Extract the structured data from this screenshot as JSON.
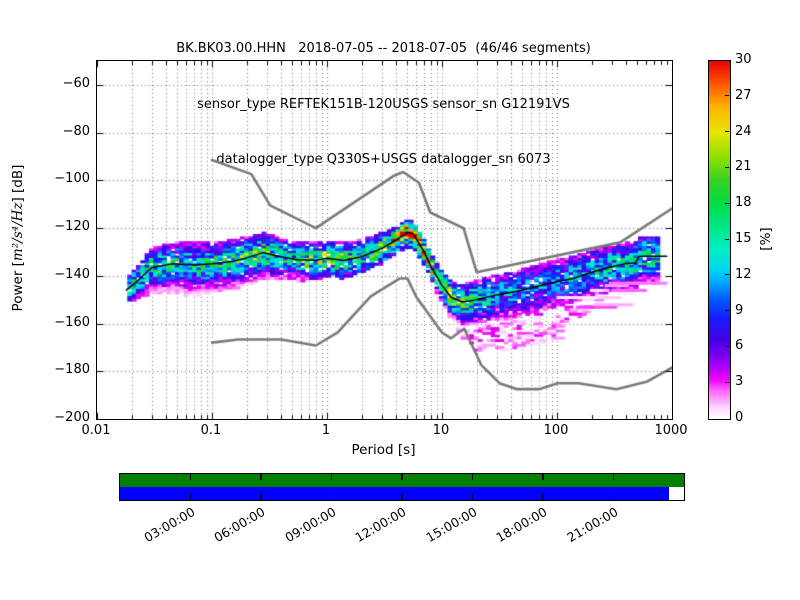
{
  "chart_data": {
    "type": "heatmap",
    "title_lines": [
      "BK.BK03.00.HHN   2018-07-05 -- 2018-07-05  (46/46 segments)",
      "sensor_type REFTEK151B-120USGS sensor_sn G12191VS",
      "datalogger_type Q330S+USGS datalogger_sn 6073"
    ],
    "xlabel": "Period [s]",
    "ylabel_prefix": "Power [",
    "ylabel_math": "m²/s⁴/Hz",
    "ylabel_suffix": "] [dB]",
    "x_scale": "log",
    "xlim": [
      0.01,
      1000
    ],
    "x_tick_labels": [
      "0.01",
      "0.1",
      "1",
      "10",
      "100",
      "1000"
    ],
    "ylim": [
      -200,
      -50
    ],
    "y_ticks": [
      -60,
      -80,
      -100,
      -120,
      -140,
      -160,
      -180,
      -200
    ],
    "grid": "both-dotted",
    "colorbar": {
      "label": "[%]",
      "min": 0,
      "max": 30,
      "ticks": [
        0,
        3,
        6,
        9,
        12,
        15,
        18,
        21,
        24,
        27,
        30
      ],
      "colormap": "pqlx",
      "stops": [
        [
          0.0,
          "#ffffff"
        ],
        [
          0.03,
          "#ffd9ff"
        ],
        [
          0.08,
          "#ff64ff"
        ],
        [
          0.11,
          "#f000ff"
        ],
        [
          0.16,
          "#9100f5"
        ],
        [
          0.22,
          "#4600e8"
        ],
        [
          0.28,
          "#1919ff"
        ],
        [
          0.33,
          "#0055ff"
        ],
        [
          0.38,
          "#00a4ff"
        ],
        [
          0.42,
          "#00d8f0"
        ],
        [
          0.47,
          "#00eec8"
        ],
        [
          0.53,
          "#00e88c"
        ],
        [
          0.6,
          "#00dc46"
        ],
        [
          0.67,
          "#3cd223"
        ],
        [
          0.73,
          "#8ce000"
        ],
        [
          0.8,
          "#e6e600"
        ],
        [
          0.87,
          "#ffb400"
        ],
        [
          0.93,
          "#ff5f00"
        ],
        [
          1.0,
          "#e60000"
        ]
      ]
    },
    "noise_models": {
      "color": "#7a7a7a",
      "nhnm": [
        [
          0.1,
          -91.5
        ],
        [
          0.22,
          -97.4
        ],
        [
          0.32,
          -110.5
        ],
        [
          0.8,
          -120.0
        ],
        [
          3.8,
          -98.1
        ],
        [
          4.6,
          -96.5
        ],
        [
          6.3,
          -101.0
        ],
        [
          7.9,
          -113.5
        ],
        [
          15.4,
          -120.0
        ],
        [
          20.0,
          -138.5
        ],
        [
          354.8,
          -126.0
        ],
        [
          1000,
          -111.8
        ]
      ],
      "nlnm": [
        [
          0.1,
          -168.0
        ],
        [
          0.17,
          -166.7
        ],
        [
          0.4,
          -166.7
        ],
        [
          0.8,
          -169.2
        ],
        [
          1.24,
          -163.7
        ],
        [
          2.4,
          -148.6
        ],
        [
          4.3,
          -141.1
        ],
        [
          5.0,
          -141.1
        ],
        [
          6.0,
          -149.0
        ],
        [
          10.0,
          -163.8
        ],
        [
          12.0,
          -166.2
        ],
        [
          15.6,
          -162.1
        ],
        [
          21.9,
          -177.3
        ],
        [
          31.6,
          -185.0
        ],
        [
          45.0,
          -187.5
        ],
        [
          70.0,
          -187.5
        ],
        [
          101.0,
          -185.0
        ],
        [
          154.0,
          -185.0
        ],
        [
          328.0,
          -187.5
        ],
        [
          600.0,
          -184.4
        ],
        [
          1000,
          -178.5
        ]
      ]
    },
    "mode_curve": {
      "color": "#000000",
      "points": [
        [
          0.018,
          -146
        ],
        [
          0.022,
          -142.5
        ],
        [
          0.03,
          -136.5
        ],
        [
          0.045,
          -135
        ],
        [
          0.07,
          -135.5
        ],
        [
          0.1,
          -135
        ],
        [
          0.15,
          -134
        ],
        [
          0.2,
          -132.5
        ],
        [
          0.28,
          -130.3
        ],
        [
          0.4,
          -132
        ],
        [
          0.55,
          -133.3
        ],
        [
          0.8,
          -133.5
        ],
        [
          1.0,
          -132.6
        ],
        [
          1.4,
          -133.6
        ],
        [
          2.0,
          -132
        ],
        [
          3.0,
          -128.5
        ],
        [
          4.0,
          -125
        ],
        [
          5.0,
          -121.8
        ],
        [
          5.6,
          -122.3
        ],
        [
          7.0,
          -130
        ],
        [
          8.0,
          -136
        ],
        [
          10.0,
          -144
        ],
        [
          12.0,
          -149
        ],
        [
          15.0,
          -151
        ],
        [
          18.0,
          -150.5
        ],
        [
          22.0,
          -149.5
        ],
        [
          30.0,
          -148
        ],
        [
          45.0,
          -146.5
        ],
        [
          60.0,
          -145
        ],
        [
          80.0,
          -143.5
        ],
        [
          100.0,
          -142.5
        ],
        [
          140.0,
          -141
        ],
        [
          200.0,
          -138.5
        ],
        [
          280.0,
          -136.5
        ],
        [
          400.0,
          -134.8
        ],
        [
          480.0,
          -134.6
        ],
        [
          520.0,
          -131.8
        ],
        [
          900.0,
          -131.8
        ]
      ]
    },
    "histogram": {
      "db_bin": 1,
      "period_min": 0.018,
      "period_max": 780,
      "band": [
        [
          0.018,
          4,
          5,
          3.5,
          16
        ],
        [
          0.03,
          8,
          11,
          5,
          15
        ],
        [
          0.06,
          9,
          13,
          5.5,
          14
        ],
        [
          0.12,
          9,
          12,
          5.5,
          15
        ],
        [
          0.28,
          8,
          11,
          5,
          18
        ],
        [
          0.5,
          7,
          9,
          4.5,
          14
        ],
        [
          1.0,
          7,
          8,
          4.5,
          20
        ],
        [
          2.0,
          7,
          7,
          4.5,
          15
        ],
        [
          3.5,
          6,
          6,
          4,
          20
        ],
        [
          5.0,
          5,
          6,
          3.5,
          26
        ],
        [
          8.0,
          4.5,
          6,
          3,
          24
        ],
        [
          12,
          6,
          9,
          4,
          20
        ],
        [
          18,
          8,
          10,
          5,
          16
        ],
        [
          30,
          8,
          11,
          6,
          11
        ],
        [
          60,
          9,
          11,
          6.5,
          10
        ],
        [
          120,
          9,
          10,
          6,
          11
        ],
        [
          250,
          9,
          10,
          6,
          13
        ],
        [
          500,
          8,
          12,
          6,
          14
        ],
        [
          780,
          8,
          12,
          6,
          14
        ]
      ],
      "tail": {
        "period_range": [
          11,
          300
        ],
        "density": 0.24,
        "bottom": [
          [
            11,
            -152
          ],
          [
            14,
            -165
          ],
          [
            20,
            -172
          ],
          [
            27,
            -169
          ],
          [
            36,
            -172
          ],
          [
            50,
            -171
          ],
          [
            70,
            -168
          ],
          [
            95,
            -166
          ],
          [
            130,
            -161
          ],
          [
            180,
            -156
          ],
          [
            240,
            -150
          ],
          [
            300,
            -146
          ]
        ]
      },
      "streaks": {
        "count": 14,
        "log_period_range": [
          1.95,
          2.8
        ],
        "db_below": [
          5,
          15
        ],
        "len_decades": [
          0.08,
          0.48
        ]
      }
    },
    "timeline": {
      "hours_total": 24,
      "tick_every_hours": 3,
      "labels": [
        "03:00:00",
        "06:00:00",
        "09:00:00",
        "12:00:00",
        "15:00:00",
        "18:00:00",
        "21:00:00"
      ],
      "rows": [
        {
          "color": "#007f00",
          "segments": [
            [
              0,
              1
            ]
          ]
        },
        {
          "color": "#0000ff",
          "segments": [
            [
              0,
              0.974
            ]
          ]
        }
      ],
      "gap_color": "#ffffff"
    }
  }
}
